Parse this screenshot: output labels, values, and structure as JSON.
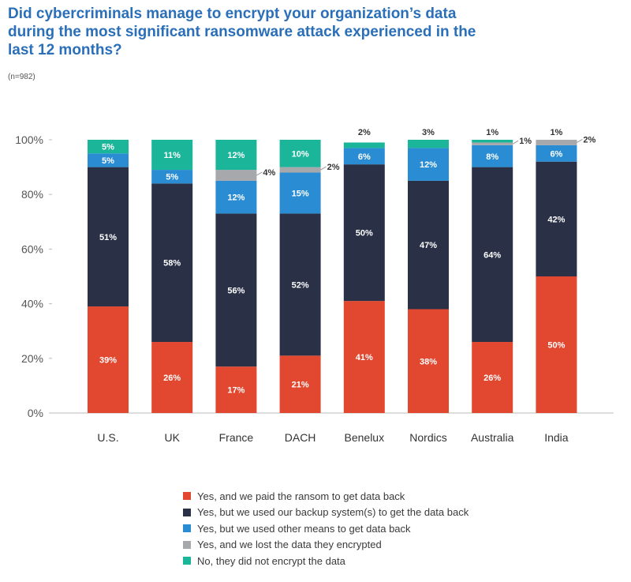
{
  "title": "Did cybercriminals manage to encrypt your organization’s data during the most significant ransomware attack experienced in the last 12 months?",
  "sample_note": "(n=982)",
  "chart_data": {
    "type": "bar",
    "stacked": true,
    "title": "Did cybercriminals manage to encrypt your organization’s data during the most significant ransomware attack experienced in the last 12 months?",
    "xlabel": "",
    "ylabel": "",
    "ylim": [
      0,
      100
    ],
    "yticks": [
      "0%",
      "20%",
      "40%",
      "60%",
      "80%",
      "100%"
    ],
    "categories": [
      "U.S.",
      "UK",
      "France",
      "DACH",
      "Benelux",
      "Nordics",
      "Australia",
      "India"
    ],
    "series": [
      {
        "name": "Yes, and we paid the ransom to get data back",
        "color": "#e2472f",
        "values": [
          39,
          26,
          17,
          21,
          41,
          38,
          26,
          50
        ],
        "labels": [
          "39%",
          "26%",
          "17%",
          "21%",
          "41%",
          "38%",
          "26%",
          "50%"
        ]
      },
      {
        "name": "Yes, but we used our backup system(s) to get the data back",
        "color": "#2a3147",
        "values": [
          51,
          58,
          56,
          52,
          50,
          47,
          64,
          42
        ],
        "labels": [
          "51%",
          "58%",
          "56%",
          "52%",
          "50%",
          "47%",
          "64%",
          "42%"
        ]
      },
      {
        "name": "Yes, but we used other means to get data back",
        "color": "#2a8dd4",
        "values": [
          5,
          5,
          12,
          15,
          6,
          12,
          8,
          6
        ],
        "labels": [
          "5%",
          "5%",
          "12%",
          "15%",
          "6%",
          "12%",
          "8%",
          "6%"
        ]
      },
      {
        "name": "Yes, and we lost the data they encrypted",
        "color": "#a6a8ac",
        "values": [
          0,
          0,
          4,
          2,
          0,
          0,
          1,
          2
        ],
        "labels": [
          "",
          "",
          "4%",
          "2%",
          "",
          "",
          "1%",
          "2%"
        ]
      },
      {
        "name": "No, they did not encrypt the data",
        "color": "#1bb59a",
        "values": [
          5,
          11,
          12,
          10,
          2,
          3,
          1,
          1
        ],
        "labels": [
          "5%",
          "11%",
          "12%",
          "10%",
          "2%",
          "3%",
          "1%",
          "1%"
        ]
      }
    ],
    "grid": false,
    "legend_position": "bottom"
  }
}
